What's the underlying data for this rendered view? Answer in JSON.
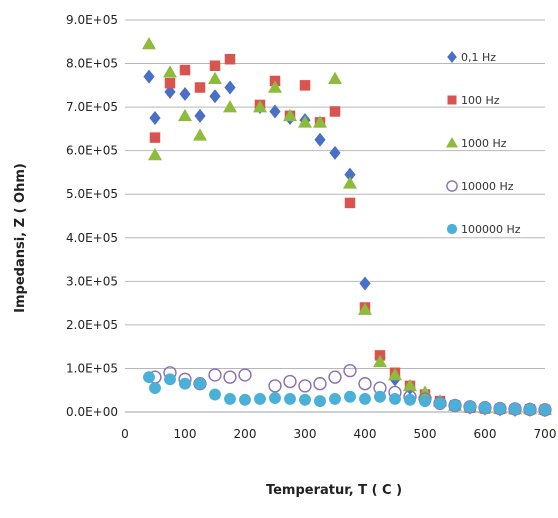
{
  "chart_data": {
    "type": "scatter",
    "title": "",
    "xlabel": "Temperatur, T ( C )",
    "ylabel": "Impedansi, Z ( Ohm)",
    "xlim": [
      0,
      700
    ],
    "ylim": [
      0,
      900000
    ],
    "x_ticks": [
      "0",
      "100",
      "200",
      "300",
      "400",
      "500",
      "600",
      "700"
    ],
    "y_ticks": [
      "0.0E+00",
      "1.0E+05",
      "2.0E+05",
      "3.0E+05",
      "4.0E+05",
      "5.0E+05",
      "6.0E+05",
      "7.0E+05",
      "8.0E+05",
      "9.0E+05"
    ],
    "grid": "horizontal",
    "legend_position": "right",
    "series": [
      {
        "name": "0,1 Hz",
        "marker": "diamond",
        "color": "#4a6fc7",
        "points": [
          [
            40,
            770000
          ],
          [
            50,
            675000
          ],
          [
            75,
            735000
          ],
          [
            100,
            730000
          ],
          [
            125,
            680000
          ],
          [
            150,
            725000
          ],
          [
            175,
            745000
          ],
          [
            225,
            700000
          ],
          [
            250,
            690000
          ],
          [
            275,
            675000
          ],
          [
            300,
            670000
          ],
          [
            325,
            625000
          ],
          [
            350,
            595000
          ],
          [
            375,
            545000
          ],
          [
            400,
            295000
          ],
          [
            425,
            125000
          ],
          [
            450,
            75000
          ],
          [
            475,
            55000
          ],
          [
            500,
            40000
          ],
          [
            525,
            20000
          ],
          [
            550,
            15000
          ],
          [
            575,
            10000
          ],
          [
            600,
            8000
          ],
          [
            625,
            6000
          ],
          [
            650,
            5000
          ],
          [
            675,
            5000
          ],
          [
            700,
            4000
          ]
        ]
      },
      {
        "name": "100 Hz",
        "marker": "square",
        "color": "#d9534f",
        "points": [
          [
            50,
            630000
          ],
          [
            75,
            755000
          ],
          [
            100,
            785000
          ],
          [
            125,
            745000
          ],
          [
            150,
            795000
          ],
          [
            175,
            810000
          ],
          [
            225,
            705000
          ],
          [
            250,
            760000
          ],
          [
            275,
            680000
          ],
          [
            300,
            750000
          ],
          [
            325,
            665000
          ],
          [
            350,
            690000
          ],
          [
            375,
            480000
          ],
          [
            400,
            240000
          ],
          [
            425,
            130000
          ],
          [
            450,
            90000
          ],
          [
            475,
            60000
          ],
          [
            500,
            40000
          ],
          [
            525,
            25000
          ],
          [
            550,
            15000
          ],
          [
            575,
            10000
          ],
          [
            600,
            8000
          ],
          [
            625,
            7000
          ],
          [
            650,
            6000
          ],
          [
            675,
            6000
          ],
          [
            700,
            5000
          ]
        ]
      },
      {
        "name": "1000 Hz",
        "marker": "triangle",
        "color": "#8dbb3c",
        "points": [
          [
            40,
            845000
          ],
          [
            50,
            590000
          ],
          [
            75,
            780000
          ],
          [
            100,
            680000
          ],
          [
            125,
            635000
          ],
          [
            150,
            765000
          ],
          [
            175,
            700000
          ],
          [
            225,
            700000
          ],
          [
            250,
            745000
          ],
          [
            275,
            680000
          ],
          [
            300,
            665000
          ],
          [
            325,
            665000
          ],
          [
            350,
            765000
          ],
          [
            375,
            525000
          ],
          [
            400,
            235000
          ],
          [
            425,
            115000
          ],
          [
            450,
            85000
          ],
          [
            475,
            60000
          ],
          [
            500,
            45000
          ],
          [
            525,
            25000
          ],
          [
            550,
            15000
          ],
          [
            575,
            12000
          ],
          [
            600,
            10000
          ],
          [
            625,
            8000
          ],
          [
            650,
            7000
          ],
          [
            675,
            7000
          ],
          [
            700,
            6000
          ]
        ]
      },
      {
        "name": "10000 Hz",
        "marker": "circle-open",
        "color": "#8a6fb5",
        "points": [
          [
            50,
            80000
          ],
          [
            75,
            90000
          ],
          [
            100,
            75000
          ],
          [
            125,
            65000
          ],
          [
            150,
            85000
          ],
          [
            175,
            80000
          ],
          [
            200,
            85000
          ],
          [
            250,
            60000
          ],
          [
            275,
            70000
          ],
          [
            300,
            60000
          ],
          [
            325,
            65000
          ],
          [
            350,
            80000
          ],
          [
            375,
            95000
          ],
          [
            400,
            65000
          ],
          [
            425,
            55000
          ],
          [
            450,
            45000
          ],
          [
            475,
            35000
          ],
          [
            500,
            30000
          ],
          [
            525,
            20000
          ],
          [
            550,
            15000
          ],
          [
            575,
            12000
          ],
          [
            600,
            10000
          ],
          [
            625,
            8000
          ],
          [
            650,
            7000
          ],
          [
            675,
            6000
          ],
          [
            700,
            5000
          ]
        ]
      },
      {
        "name": "100000 Hz",
        "marker": "circle",
        "color": "#4bb0d8",
        "points": [
          [
            40,
            80000
          ],
          [
            50,
            55000
          ],
          [
            75,
            75000
          ],
          [
            100,
            65000
          ],
          [
            125,
            65000
          ],
          [
            150,
            40000
          ],
          [
            175,
            30000
          ],
          [
            200,
            28000
          ],
          [
            225,
            30000
          ],
          [
            250,
            32000
          ],
          [
            275,
            30000
          ],
          [
            300,
            28000
          ],
          [
            325,
            25000
          ],
          [
            350,
            30000
          ],
          [
            375,
            35000
          ],
          [
            400,
            30000
          ],
          [
            425,
            35000
          ],
          [
            450,
            30000
          ],
          [
            475,
            28000
          ],
          [
            500,
            25000
          ],
          [
            525,
            20000
          ],
          [
            550,
            15000
          ],
          [
            575,
            12000
          ],
          [
            600,
            10000
          ],
          [
            625,
            8000
          ],
          [
            650,
            7000
          ],
          [
            675,
            6000
          ],
          [
            700,
            5000
          ]
        ]
      }
    ]
  }
}
